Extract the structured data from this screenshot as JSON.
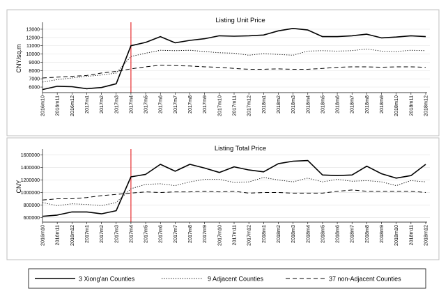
{
  "x_labels": [
    "2016m10",
    "2016m11",
    "2016m12",
    "2017m1",
    "2017m2",
    "2017m3",
    "2017m4",
    "2017m5",
    "2017m6",
    "2017m7",
    "2017m8",
    "2017m9",
    "2017m10",
    "2017m11",
    "2017m12",
    "2018m1",
    "2018m2",
    "2018m3",
    "2018m4",
    "2018m5",
    "2018m6",
    "2018m7",
    "2018m8",
    "2018m9",
    "2018m10",
    "2018m11",
    "2018m12"
  ],
  "legend": {
    "entries": [
      {
        "label": "3 Xiong'an Counties",
        "style": "solid"
      },
      {
        "label": "9 Adjacent Counties",
        "style": "dotted"
      },
      {
        "label": "37 non-Adjacent Counties",
        "style": "dashed"
      }
    ]
  },
  "chart_data": [
    {
      "type": "line",
      "title": "Listing Unit Price",
      "ylabel": "CNY/sq.m",
      "ylim": [
        5500,
        13500
      ],
      "yticks": [
        6000,
        7000,
        8000,
        9000,
        10000,
        11000,
        12000,
        13000
      ],
      "reference_line": {
        "x": "2017m4",
        "color": "#e41a1c"
      },
      "series": [
        {
          "name": "3 Xiong'an Counties",
          "style": "solid",
          "values": [
            5700,
            6100,
            6050,
            5800,
            5950,
            6400,
            11000,
            11400,
            12100,
            11350,
            11650,
            11850,
            12200,
            12150,
            12200,
            12300,
            12800,
            13100,
            12900,
            12100,
            12100,
            12200,
            12400,
            11950,
            12050,
            12200,
            12100
          ]
        },
        {
          "name": "9 Adjacent Counties",
          "style": "dotted",
          "values": [
            6600,
            6900,
            7100,
            7300,
            7450,
            7700,
            9700,
            10100,
            10450,
            10400,
            10450,
            10300,
            10150,
            10100,
            9850,
            10050,
            9950,
            9850,
            10350,
            10400,
            10350,
            10400,
            10600,
            10350,
            10300,
            10450,
            10400
          ]
        },
        {
          "name": "37 non-Adjacent Counties",
          "style": "dashed",
          "values": [
            7100,
            7200,
            7300,
            7400,
            7700,
            7900,
            8200,
            8450,
            8650,
            8600,
            8550,
            8450,
            8400,
            8250,
            8150,
            8150,
            8200,
            8150,
            8150,
            8250,
            8400,
            8450,
            8450,
            8400,
            8450,
            8450,
            8400
          ]
        }
      ]
    },
    {
      "type": "line",
      "title": "Listing Total Price",
      "ylabel": "CNY",
      "ylim": [
        550000,
        1650000
      ],
      "yticks": [
        600000,
        800000,
        1000000,
        1200000,
        1400000,
        1600000
      ],
      "reference_line": {
        "x": "2017m4",
        "color": "#e41a1c"
      },
      "series": [
        {
          "name": "3 Xiong'an Counties",
          "style": "solid",
          "values": [
            620000,
            640000,
            690000,
            690000,
            660000,
            710000,
            1250000,
            1290000,
            1450000,
            1340000,
            1450000,
            1390000,
            1320000,
            1410000,
            1360000,
            1330000,
            1460000,
            1500000,
            1510000,
            1280000,
            1270000,
            1280000,
            1420000,
            1300000,
            1230000,
            1270000,
            1450000
          ]
        },
        {
          "name": "9 Adjacent Counties",
          "style": "dotted",
          "values": [
            840000,
            790000,
            820000,
            810000,
            790000,
            840000,
            1060000,
            1130000,
            1140000,
            1110000,
            1170000,
            1210000,
            1210000,
            1160000,
            1170000,
            1240000,
            1200000,
            1170000,
            1230000,
            1170000,
            1210000,
            1180000,
            1190000,
            1170000,
            1110000,
            1190000,
            1170000
          ]
        },
        {
          "name": "37 non-Adjacent Counties",
          "style": "dashed",
          "values": [
            880000,
            900000,
            900000,
            920000,
            950000,
            970000,
            990000,
            1010000,
            1000000,
            1010000,
            1010000,
            1020000,
            1010000,
            1020000,
            990000,
            1000000,
            1000000,
            990000,
            990000,
            990000,
            1020000,
            1040000,
            1020000,
            1020000,
            1020000,
            1020000,
            1000000
          ]
        }
      ]
    }
  ]
}
